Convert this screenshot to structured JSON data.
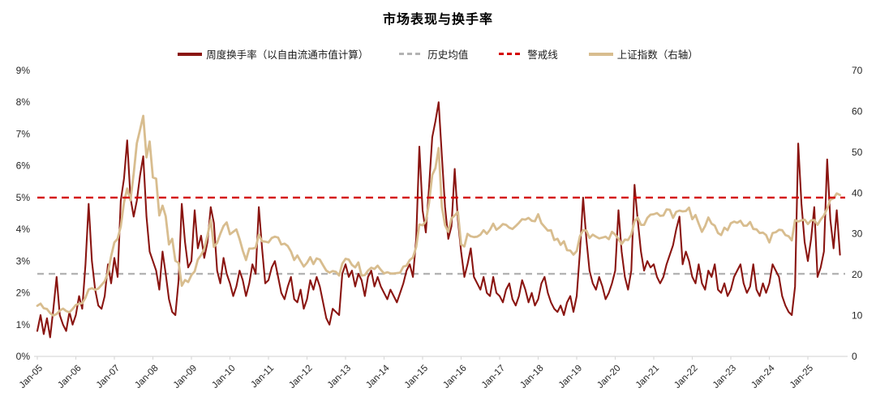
{
  "title": "市场表现与换手率",
  "legend": [
    {
      "label": "周度换手率（以自由流通市值计算）",
      "color": "#8A1511",
      "style": "solid"
    },
    {
      "label": "历史均值",
      "color": "#B3B3B3",
      "style": "dashed"
    },
    {
      "label": "警戒线",
      "color": "#D40000",
      "style": "dashed"
    },
    {
      "label": "上证指数（右轴）",
      "color": "#D8BD8F",
      "style": "solid"
    }
  ],
  "chart_data": {
    "type": "line",
    "title": "市场表现与换手率",
    "grid": false,
    "legend_position": "top",
    "x_start": "2005-01",
    "points_per_year": 12,
    "x_tick_labels": [
      "Jan-05",
      "Jan-06",
      "Jan-07",
      "Jan-08",
      "Jan-09",
      "Jan-10",
      "Jan-11",
      "Jan-12",
      "Jan-13",
      "Jan-14",
      "Jan-15",
      "Jan-16",
      "Jan-17",
      "Jan-18",
      "Jan-19",
      "Jan-20",
      "Jan-21",
      "Jan-22",
      "Jan-23",
      "Jan-24",
      "Jan-25"
    ],
    "left_axis": {
      "min": 0,
      "max": 9,
      "tick_labels": [
        "0%",
        "1%",
        "2%",
        "3%",
        "4%",
        "5%",
        "6%",
        "7%",
        "8%",
        "9%"
      ]
    },
    "right_axis": {
      "min": 0,
      "max": 70,
      "tick_labels": [
        "0",
        "10",
        "20",
        "30",
        "40",
        "50",
        "60",
        "70"
      ]
    },
    "reference_lines": [
      {
        "name": "历史均值",
        "axis": "left",
        "value": 2.6,
        "color": "#B3B3B3",
        "style": "dashed"
      },
      {
        "name": "警戒线",
        "axis": "left",
        "value": 5.0,
        "color": "#D40000",
        "style": "dashed"
      }
    ],
    "series": [
      {
        "name": "周度换手率（以自由流通市值计算）",
        "axis": "left",
        "unit": "%",
        "color": "#8A1511",
        "width": 2.1,
        "values": [
          0.8,
          1.3,
          0.7,
          1.2,
          0.6,
          1.5,
          2.5,
          1.3,
          1.0,
          0.8,
          1.4,
          1.0,
          1.3,
          1.9,
          1.5,
          2.9,
          4.8,
          3.0,
          2.1,
          1.6,
          1.5,
          1.9,
          2.9,
          2.3,
          3.1,
          2.5,
          4.9,
          5.6,
          6.8,
          5.0,
          4.4,
          4.9,
          5.7,
          6.3,
          4.4,
          3.3,
          3.0,
          2.7,
          2.1,
          3.3,
          2.6,
          1.8,
          1.4,
          1.3,
          2.4,
          4.8,
          3.6,
          2.8,
          3.0,
          4.6,
          3.4,
          3.8,
          3.1,
          3.6,
          4.7,
          4.2,
          2.7,
          2.3,
          3.1,
          2.6,
          2.3,
          1.9,
          2.2,
          2.7,
          2.4,
          1.9,
          2.3,
          2.9,
          2.6,
          4.7,
          3.4,
          2.3,
          2.4,
          2.8,
          3.0,
          2.5,
          2.0,
          1.8,
          2.2,
          2.5,
          1.8,
          1.7,
          2.1,
          1.5,
          1.8,
          2.4,
          2.1,
          2.5,
          2.2,
          1.7,
          1.2,
          1.0,
          1.5,
          1.4,
          1.3,
          2.6,
          2.9,
          2.5,
          2.7,
          2.2,
          2.6,
          2.4,
          1.9,
          2.5,
          2.7,
          2.2,
          2.5,
          2.2,
          2.0,
          1.8,
          2.1,
          1.9,
          1.7,
          2.0,
          2.3,
          2.7,
          2.9,
          2.5,
          3.7,
          6.6,
          4.6,
          3.9,
          5.3,
          6.9,
          7.4,
          8.0,
          6.3,
          4.7,
          3.7,
          4.1,
          5.9,
          4.3,
          3.3,
          2.5,
          2.9,
          3.4,
          2.5,
          2.3,
          2.1,
          2.5,
          2.0,
          1.9,
          2.5,
          2.0,
          1.9,
          1.7,
          2.1,
          2.3,
          1.8,
          1.6,
          1.9,
          2.4,
          2.1,
          1.7,
          2.0,
          1.6,
          1.8,
          2.3,
          2.5,
          2.0,
          1.7,
          1.5,
          1.4,
          1.6,
          1.3,
          1.7,
          1.9,
          1.4,
          1.9,
          3.3,
          5.0,
          3.7,
          2.7,
          2.3,
          2.1,
          2.5,
          2.2,
          1.8,
          2.0,
          2.3,
          2.7,
          4.6,
          3.3,
          2.5,
          2.1,
          2.7,
          5.4,
          4.3,
          3.3,
          2.7,
          3.0,
          2.8,
          2.9,
          2.5,
          2.3,
          2.5,
          2.9,
          3.2,
          3.5,
          4.0,
          4.4,
          2.9,
          3.3,
          3.0,
          2.5,
          2.3,
          2.9,
          2.3,
          2.1,
          2.7,
          2.5,
          2.9,
          2.1,
          2.0,
          2.3,
          1.9,
          2.1,
          2.5,
          2.7,
          2.9,
          2.3,
          2.0,
          2.2,
          2.9,
          2.1,
          1.9,
          2.3,
          2.0,
          2.3,
          2.9,
          2.7,
          2.5,
          1.9,
          1.6,
          1.4,
          1.3,
          2.2,
          6.7,
          4.8,
          3.6,
          3.0,
          3.7,
          4.7,
          2.5,
          2.8,
          3.3,
          6.2,
          4.3,
          3.4,
          4.6,
          3.2
        ]
      },
      {
        "name": "上证指数（右轴）",
        "axis": "right",
        "unit": "index/100",
        "color": "#D8BD8F",
        "width": 2.8,
        "values": [
          12.4,
          12.9,
          11.8,
          11.6,
          10.6,
          10.0,
          10.4,
          11.2,
          11.7,
          11.1,
          10.8,
          11.6,
          12.6,
          12.9,
          13.0,
          14.4,
          16.4,
          16.7,
          16.3,
          16.6,
          17.5,
          18.4,
          20.5,
          24.5,
          27.9,
          28.8,
          31.8,
          37.7,
          41.1,
          38.2,
          44.7,
          52.2,
          55.5,
          58.9,
          48.7,
          52.6,
          43.8,
          43.5,
          34.5,
          36.9,
          34.3,
          27.4,
          28.8,
          23.4,
          22.9,
          17.3,
          18.7,
          18.2,
          19.9,
          20.8,
          23.7,
          24.8,
          26.3,
          29.6,
          33.4,
          26.8,
          27.8,
          30.0,
          31.9,
          32.8,
          29.9,
          30.5,
          31.1,
          28.7,
          25.9,
          23.6,
          26.4,
          26.4,
          26.6,
          29.8,
          28.2,
          28.1,
          27.9,
          29.0,
          29.3,
          29.1,
          27.4,
          27.6,
          27.0,
          25.7,
          23.6,
          24.7,
          23.3,
          22.0,
          22.9,
          24.3,
          22.6,
          24.0,
          23.7,
          22.3,
          21.0,
          20.5,
          20.9,
          20.7,
          19.8,
          22.7,
          23.9,
          23.7,
          22.4,
          21.8,
          23.0,
          19.8,
          19.9,
          21.0,
          21.7,
          21.4,
          22.2,
          21.2,
          20.3,
          20.6,
          20.3,
          20.3,
          20.4,
          20.5,
          22.0,
          22.2,
          23.6,
          24.2,
          26.8,
          32.3,
          32.1,
          33.1,
          37.5,
          44.4,
          46.1,
          51.0,
          36.6,
          32.1,
          30.5,
          33.8,
          34.5,
          35.4,
          27.4,
          26.9,
          30.0,
          29.4,
          29.2,
          29.3,
          29.8,
          30.9,
          30.0,
          31.0,
          32.5,
          31.0,
          31.6,
          32.4,
          32.2,
          31.5,
          31.2,
          31.9,
          32.7,
          33.6,
          33.5,
          33.9,
          33.2,
          33.1,
          34.8,
          32.6,
          31.7,
          30.8,
          30.9,
          28.5,
          28.8,
          27.3,
          28.2,
          26.0,
          25.9,
          24.9,
          25.8,
          29.4,
          30.9,
          30.8,
          29.0,
          29.8,
          29.3,
          28.9,
          29.1,
          29.3,
          28.7,
          30.5,
          29.8,
          28.8,
          27.5,
          28.6,
          28.5,
          29.8,
          33.1,
          34.0,
          32.2,
          32.2,
          33.9,
          34.7,
          34.8,
          35.1,
          34.4,
          34.5,
          36.0,
          35.9,
          33.9,
          35.4,
          35.7,
          35.5,
          35.6,
          36.4,
          33.6,
          34.6,
          32.5,
          30.5,
          31.9,
          34.0,
          32.5,
          32.0,
          30.2,
          29.7,
          31.5,
          30.9,
          32.6,
          33.0,
          32.7,
          33.2,
          32.0,
          32.0,
          32.9,
          31.2,
          31.1,
          30.2,
          30.3,
          29.7,
          27.9,
          30.2,
          30.4,
          31.0,
          30.9,
          29.7,
          29.4,
          28.4,
          33.4,
          33.0,
          33.3,
          33.5,
          32.4,
          33.3,
          33.4,
          32.2,
          33.5,
          34.5,
          36.2,
          38.4,
          38.7,
          39.9,
          39.5
        ]
      }
    ]
  },
  "axis_style": {
    "line_color": "#D9D9D9",
    "text_color": "#262626"
  }
}
